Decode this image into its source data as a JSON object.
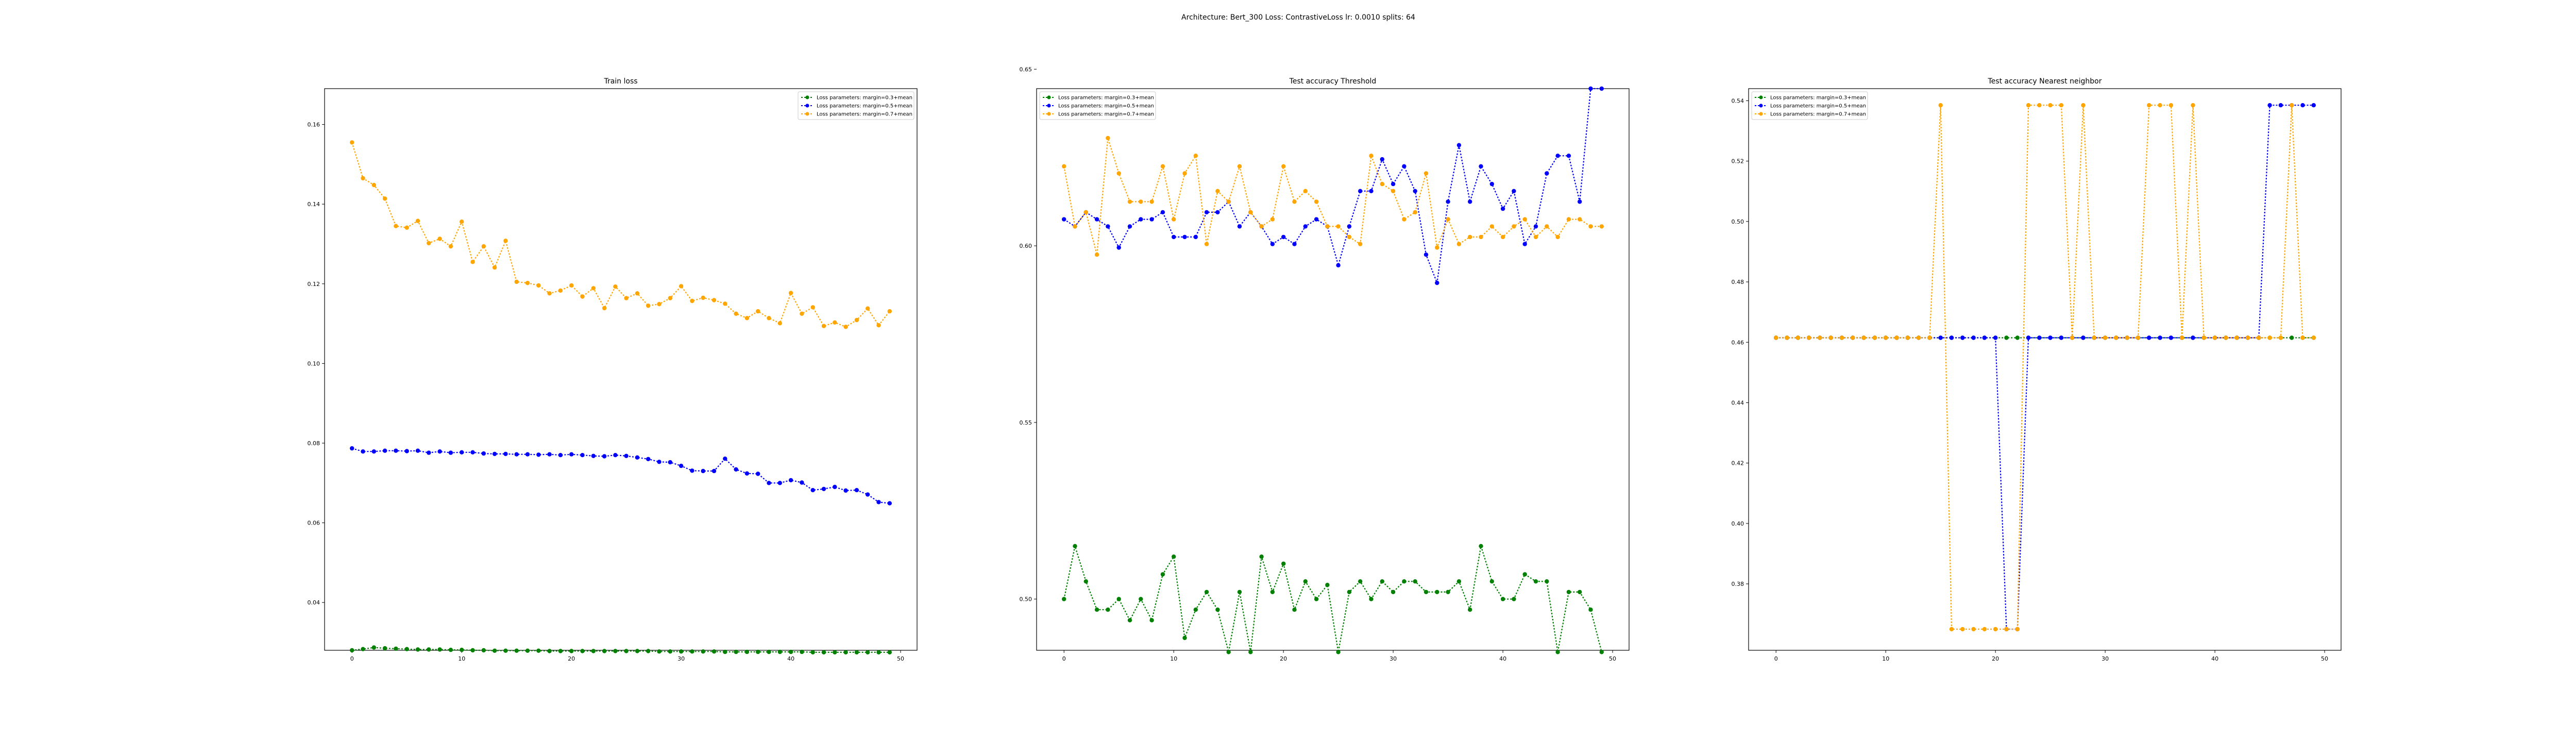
{
  "figure": {
    "suptitle": "Architecture: Bert_300 Loss: ContrastiveLoss lr: 0.0010 splits: 64"
  },
  "chart_data": [
    {
      "type": "line",
      "title": "Train loss",
      "xlabel": "",
      "ylabel": "",
      "xlim": [
        -2.5,
        51.5
      ],
      "ylim": [
        0.028,
        0.169
      ],
      "xticks": [
        0,
        10,
        20,
        30,
        40,
        50
      ],
      "yticks": [
        0.04,
        0.06,
        0.08,
        0.1,
        0.12,
        0.14,
        0.16
      ],
      "ytick_labels": [
        "0.04",
        "0.06",
        "0.08",
        "0.10",
        "0.12",
        "0.14",
        "0.16"
      ],
      "legend_position": "top-right",
      "grid": false,
      "x": [
        0,
        1,
        2,
        3,
        4,
        5,
        6,
        7,
        8,
        9,
        10,
        11,
        12,
        13,
        14,
        15,
        16,
        17,
        18,
        19,
        20,
        21,
        22,
        23,
        24,
        25,
        26,
        27,
        28,
        29,
        30,
        31,
        32,
        33,
        34,
        35,
        36,
        37,
        38,
        39,
        40,
        41,
        42,
        43,
        44,
        45,
        46,
        47,
        48,
        49
      ],
      "series": [
        {
          "name": "Loss parameters: margin=0.3+mean",
          "color": "#008000",
          "values": [
            0.028,
            0.0283,
            0.0287,
            0.0285,
            0.0284,
            0.0283,
            0.0282,
            0.0282,
            0.0282,
            0.0281,
            0.0281,
            0.028,
            0.028,
            0.0279,
            0.0279,
            0.0279,
            0.0279,
            0.0279,
            0.0278,
            0.0278,
            0.0278,
            0.0278,
            0.0278,
            0.0278,
            0.0278,
            0.0278,
            0.0278,
            0.0278,
            0.0277,
            0.0277,
            0.0277,
            0.0277,
            0.0277,
            0.0277,
            0.0276,
            0.0276,
            0.0276,
            0.0276,
            0.0276,
            0.0276,
            0.0276,
            0.0276,
            0.0275,
            0.0275,
            0.0275,
            0.0275,
            0.0275,
            0.0275,
            0.0275,
            0.0275
          ]
        },
        {
          "name": "Loss parameters: margin=0.5+mean",
          "color": "#0000ff",
          "values": [
            0.0787,
            0.0779,
            0.0779,
            0.0781,
            0.0781,
            0.078,
            0.0781,
            0.0776,
            0.0779,
            0.0776,
            0.0777,
            0.0777,
            0.0774,
            0.0773,
            0.0773,
            0.0772,
            0.0772,
            0.0771,
            0.0772,
            0.077,
            0.0772,
            0.077,
            0.0768,
            0.0767,
            0.077,
            0.0768,
            0.0764,
            0.076,
            0.0753,
            0.0752,
            0.0743,
            0.0731,
            0.073,
            0.073,
            0.0761,
            0.0734,
            0.0724,
            0.0723,
            0.07,
            0.07,
            0.0707,
            0.0701,
            0.0682,
            0.0685,
            0.069,
            0.0681,
            0.0682,
            0.0671,
            0.0652,
            0.0649
          ]
        },
        {
          "name": "Loss parameters: margin=0.7+mean",
          "color": "#ffa500",
          "values": [
            0.1555,
            0.1465,
            0.1448,
            0.1414,
            0.1345,
            0.1341,
            0.1358,
            0.1302,
            0.1313,
            0.1294,
            0.1356,
            0.1255,
            0.1294,
            0.1241,
            0.1308,
            0.1205,
            0.1202,
            0.1196,
            0.1176,
            0.1183,
            0.1196,
            0.1168,
            0.1189,
            0.1139,
            0.1193,
            0.1164,
            0.1176,
            0.1145,
            0.1149,
            0.1164,
            0.1194,
            0.1157,
            0.1165,
            0.1159,
            0.115,
            0.1125,
            0.1114,
            0.1131,
            0.1114,
            0.1101,
            0.1177,
            0.1125,
            0.1141,
            0.1094,
            0.1103,
            0.1092,
            0.1109,
            0.1138,
            0.1096,
            0.1131
          ]
        }
      ]
    },
    {
      "type": "line",
      "title": "Test accuracy Threshold",
      "xlabel": "",
      "ylabel": "",
      "xlim": [
        -2.5,
        51.5
      ],
      "ylim": [
        0.4855,
        0.6445
      ],
      "xticks": [
        0,
        10,
        20,
        30,
        40,
        50
      ],
      "yticks": [
        0.5,
        0.55,
        0.6,
        0.65
      ],
      "ytick_labels": [
        "0.50",
        "0.55",
        "0.60",
        "0.65"
      ],
      "legend_position": "top-left",
      "grid": false,
      "x": [
        0,
        1,
        2,
        3,
        4,
        5,
        6,
        7,
        8,
        9,
        10,
        11,
        12,
        13,
        14,
        15,
        16,
        17,
        18,
        19,
        20,
        21,
        22,
        23,
        24,
        25,
        26,
        27,
        28,
        29,
        30,
        31,
        32,
        33,
        34,
        35,
        36,
        37,
        38,
        39,
        40,
        41,
        42,
        43,
        44,
        45,
        46,
        47,
        48,
        49
      ],
      "series": [
        {
          "name": "Loss parameters: margin=0.3+mean",
          "color": "#008000",
          "values": [
            0.5,
            0.515,
            0.505,
            0.497,
            0.497,
            0.5,
            0.494,
            0.5,
            0.494,
            0.507,
            0.512,
            0.489,
            0.497,
            0.502,
            0.497,
            0.485,
            0.502,
            0.485,
            0.512,
            0.502,
            0.51,
            0.497,
            0.505,
            0.5,
            0.504,
            0.485,
            0.502,
            0.505,
            0.5,
            0.505,
            0.502,
            0.505,
            0.505,
            0.502,
            0.502,
            0.502,
            0.505,
            0.497,
            0.515,
            0.505,
            0.5,
            0.5,
            0.507,
            0.505,
            0.505,
            0.485,
            0.502,
            0.502,
            0.497,
            0.485
          ]
        },
        {
          "name": "Loss parameters: margin=0.5+mean",
          "color": "#0000ff",
          "values": [
            0.6075,
            0.6055,
            0.6095,
            0.6075,
            0.6055,
            0.5995,
            0.6055,
            0.6075,
            0.6075,
            0.6095,
            0.6025,
            0.6025,
            0.6025,
            0.6095,
            0.6095,
            0.6125,
            0.6055,
            0.6095,
            0.6055,
            0.6005,
            0.6025,
            0.6005,
            0.6055,
            0.6075,
            0.6055,
            0.5945,
            0.6055,
            0.6155,
            0.6155,
            0.6245,
            0.6175,
            0.6225,
            0.6155,
            0.5975,
            0.5895,
            0.6125,
            0.6285,
            0.6125,
            0.6225,
            0.6175,
            0.6105,
            0.6155,
            0.6005,
            0.6055,
            0.6205,
            0.6255,
            0.6255,
            0.6125,
            0.6445,
            0.6445
          ]
        },
        {
          "name": "Loss parameters: margin=0.7+mean",
          "color": "#ffa500",
          "values": [
            0.6225,
            0.6055,
            0.6095,
            0.5975,
            0.6305,
            0.6205,
            0.6125,
            0.6125,
            0.6125,
            0.6225,
            0.6075,
            0.6205,
            0.6255,
            0.6005,
            0.6155,
            0.6125,
            0.6225,
            0.6095,
            0.6055,
            0.6075,
            0.6225,
            0.6125,
            0.6155,
            0.6125,
            0.6055,
            0.6055,
            0.6025,
            0.6005,
            0.6255,
            0.6175,
            0.6155,
            0.6075,
            0.6095,
            0.6205,
            0.5995,
            0.6075,
            0.6005,
            0.6025,
            0.6025,
            0.6055,
            0.6025,
            0.6055,
            0.6075,
            0.6025,
            0.6055,
            0.6025,
            0.6075,
            0.6075,
            0.6055,
            0.6055
          ]
        }
      ]
    },
    {
      "type": "line",
      "title": "Test accuracy Nearest neighbor",
      "xlabel": "",
      "ylabel": "",
      "xlim": [
        -2.5,
        51.5
      ],
      "ylim": [
        0.358,
        0.544
      ],
      "xticks": [
        0,
        10,
        20,
        30,
        40,
        50
      ],
      "yticks": [
        0.38,
        0.4,
        0.42,
        0.44,
        0.46,
        0.48,
        0.5,
        0.52,
        0.54
      ],
      "ytick_labels": [
        "0.38",
        "0.40",
        "0.42",
        "0.44",
        "0.46",
        "0.48",
        "0.50",
        "0.52",
        "0.54"
      ],
      "legend_position": "top-left",
      "grid": false,
      "x": [
        0,
        1,
        2,
        3,
        4,
        5,
        6,
        7,
        8,
        9,
        10,
        11,
        12,
        13,
        14,
        15,
        16,
        17,
        18,
        19,
        20,
        21,
        22,
        23,
        24,
        25,
        26,
        27,
        28,
        29,
        30,
        31,
        32,
        33,
        34,
        35,
        36,
        37,
        38,
        39,
        40,
        41,
        42,
        43,
        44,
        45,
        46,
        47,
        48,
        49
      ],
      "series": [
        {
          "name": "Loss parameters: margin=0.3+mean",
          "color": "#008000",
          "values": [
            0.4615,
            0.4615,
            0.4615,
            0.4615,
            0.4615,
            0.4615,
            0.4615,
            0.4615,
            0.4615,
            0.4615,
            0.4615,
            0.4615,
            0.4615,
            0.4615,
            0.4615,
            0.4615,
            0.4615,
            0.4615,
            0.4615,
            0.4615,
            0.4615,
            0.4615,
            0.4615,
            0.4615,
            0.4615,
            0.4615,
            0.4615,
            0.4615,
            0.4615,
            0.4615,
            0.4615,
            0.4615,
            0.4615,
            0.4615,
            0.4615,
            0.4615,
            0.4615,
            0.4615,
            0.4615,
            0.4615,
            0.4615,
            0.4615,
            0.4615,
            0.4615,
            0.4615,
            0.4615,
            0.4615,
            0.4615,
            0.4615,
            0.4615
          ]
        },
        {
          "name": "Loss parameters: margin=0.5+mean",
          "color": "#0000ff",
          "values": [
            0.4615,
            0.4615,
            0.4615,
            0.4615,
            0.4615,
            0.4615,
            0.4615,
            0.4615,
            0.4615,
            0.4615,
            0.4615,
            0.4615,
            0.4615,
            0.4615,
            0.4615,
            0.4615,
            0.4615,
            0.4615,
            0.4615,
            0.4615,
            0.4615,
            0.365,
            0.365,
            0.4615,
            0.4615,
            0.4615,
            0.4615,
            0.4615,
            0.4615,
            0.4615,
            0.4615,
            0.4615,
            0.4615,
            0.4615,
            0.4615,
            0.4615,
            0.4615,
            0.4615,
            0.4615,
            0.4615,
            0.4615,
            0.4615,
            0.4615,
            0.4615,
            0.4615,
            0.5385,
            0.5385,
            0.5385,
            0.5385,
            0.5385
          ]
        },
        {
          "name": "Loss parameters: margin=0.7+mean",
          "color": "#ffa500",
          "values": [
            0.4615,
            0.4615,
            0.4615,
            0.4615,
            0.4615,
            0.4615,
            0.4615,
            0.4615,
            0.4615,
            0.4615,
            0.4615,
            0.4615,
            0.4615,
            0.4615,
            0.4615,
            0.5385,
            0.365,
            0.365,
            0.365,
            0.365,
            0.365,
            0.365,
            0.365,
            0.5385,
            0.5385,
            0.5385,
            0.5385,
            0.4615,
            0.5385,
            0.4615,
            0.4615,
            0.4615,
            0.4615,
            0.4615,
            0.5385,
            0.5385,
            0.5385,
            0.4615,
            0.5385,
            0.4615,
            0.4615,
            0.4615,
            0.4615,
            0.4615,
            0.4615,
            0.4615,
            0.4615,
            0.5385,
            0.4615,
            0.4615
          ]
        }
      ]
    }
  ]
}
